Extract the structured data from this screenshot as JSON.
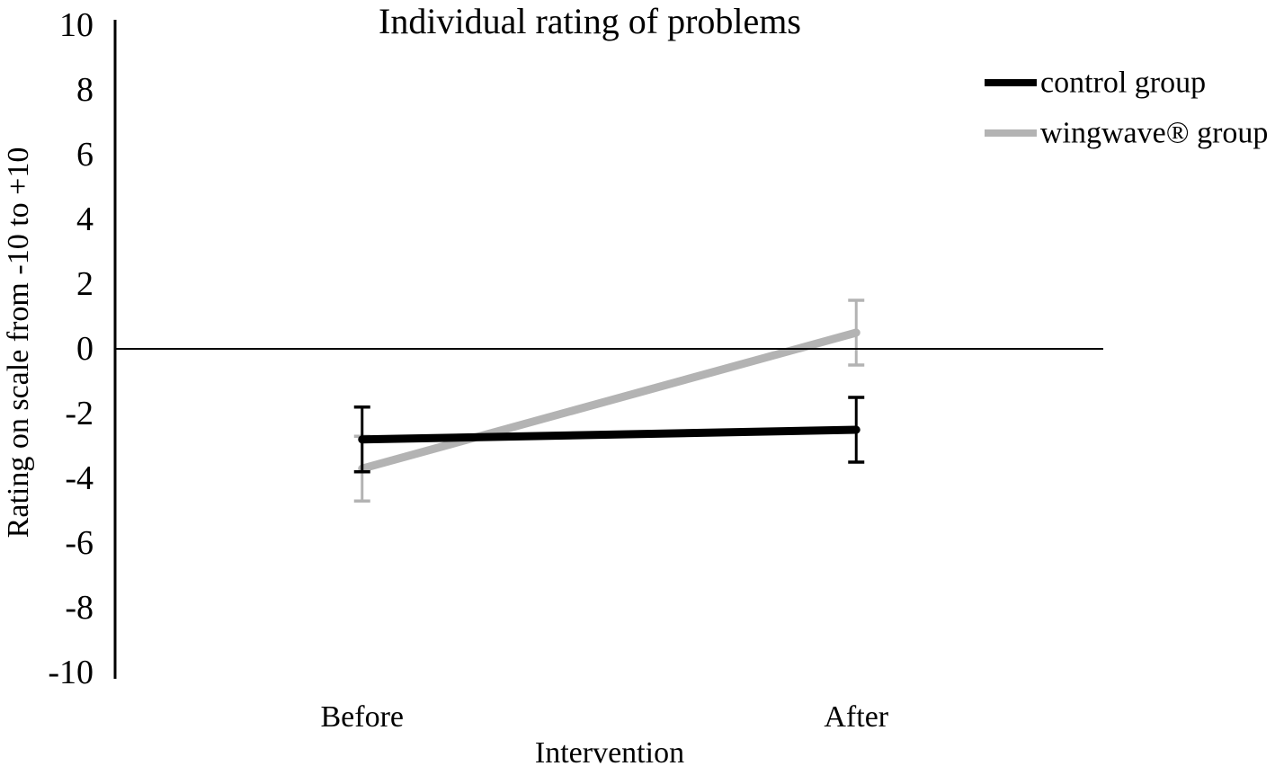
{
  "chart": {
    "title": "Individual rating of problems",
    "x_axis_label": "Intervention",
    "y_axis_label": "Rating on scale from -10 to +10"
  },
  "legend": {
    "items": [
      {
        "label": "control group",
        "color": "#000000"
      },
      {
        "label": "wingwave® group",
        "color": "#b3b3b3"
      }
    ]
  },
  "chart_data": {
    "type": "line",
    "title": "Individual rating of problems",
    "xlabel": "Intervention",
    "ylabel": "Rating on scale from -10 to +10",
    "categories": [
      "Before",
      "After"
    ],
    "series": [
      {
        "name": "control group",
        "values": [
          -2.8,
          -2.5
        ],
        "error": [
          1.0,
          1.0
        ],
        "color": "#000000"
      },
      {
        "name": "wingwave® group",
        "values": [
          -3.7,
          0.5
        ],
        "error": [
          1.0,
          1.0
        ],
        "color": "#b3b3b3"
      }
    ],
    "ylim": [
      -10,
      10
    ],
    "ytick_step": 2,
    "yticks": [
      10,
      8,
      6,
      4,
      2,
      0,
      -2,
      -4,
      -6,
      -8,
      -10
    ],
    "grid": false,
    "error_bars": true,
    "zero_line": true,
    "legend_position": "top-right"
  }
}
